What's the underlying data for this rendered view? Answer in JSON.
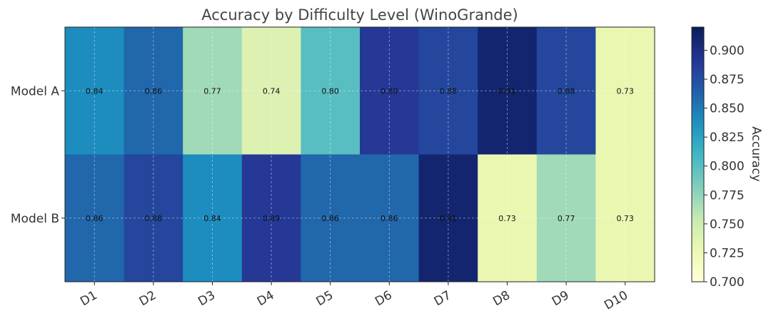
{
  "chart_data": {
    "type": "heatmap",
    "title": "Accuracy by Difficulty Level (WinoGrande)",
    "xlabel": "",
    "ylabel": "",
    "x_categories": [
      "D1",
      "D2",
      "D3",
      "D4",
      "D5",
      "D6",
      "D7",
      "D8",
      "D9",
      "D10"
    ],
    "y_categories": [
      "Model A",
      "Model B"
    ],
    "values": [
      [
        0.84,
        0.86,
        0.77,
        0.74,
        0.8,
        0.89,
        0.88,
        0.91,
        0.88,
        0.73
      ],
      [
        0.86,
        0.88,
        0.84,
        0.89,
        0.86,
        0.86,
        0.91,
        0.73,
        0.77,
        0.73
      ]
    ],
    "value_labels": [
      [
        "0.84",
        "0.86",
        "0.77",
        "0.74",
        "0.80",
        "0.89",
        "0.88",
        "0.91",
        "0.88",
        "0.73"
      ],
      [
        "0.86",
        "0.88",
        "0.84",
        "0.89",
        "0.86",
        "0.86",
        "0.91",
        "0.73",
        "0.77",
        "0.73"
      ]
    ],
    "colorbar": {
      "label": "Accuracy",
      "range": [
        0.7,
        0.92
      ],
      "ticks": [
        "0.700",
        "0.725",
        "0.750",
        "0.775",
        "0.800",
        "0.825",
        "0.850",
        "0.875",
        "0.900"
      ],
      "colormap": "YlGnBu"
    },
    "grid": true
  }
}
